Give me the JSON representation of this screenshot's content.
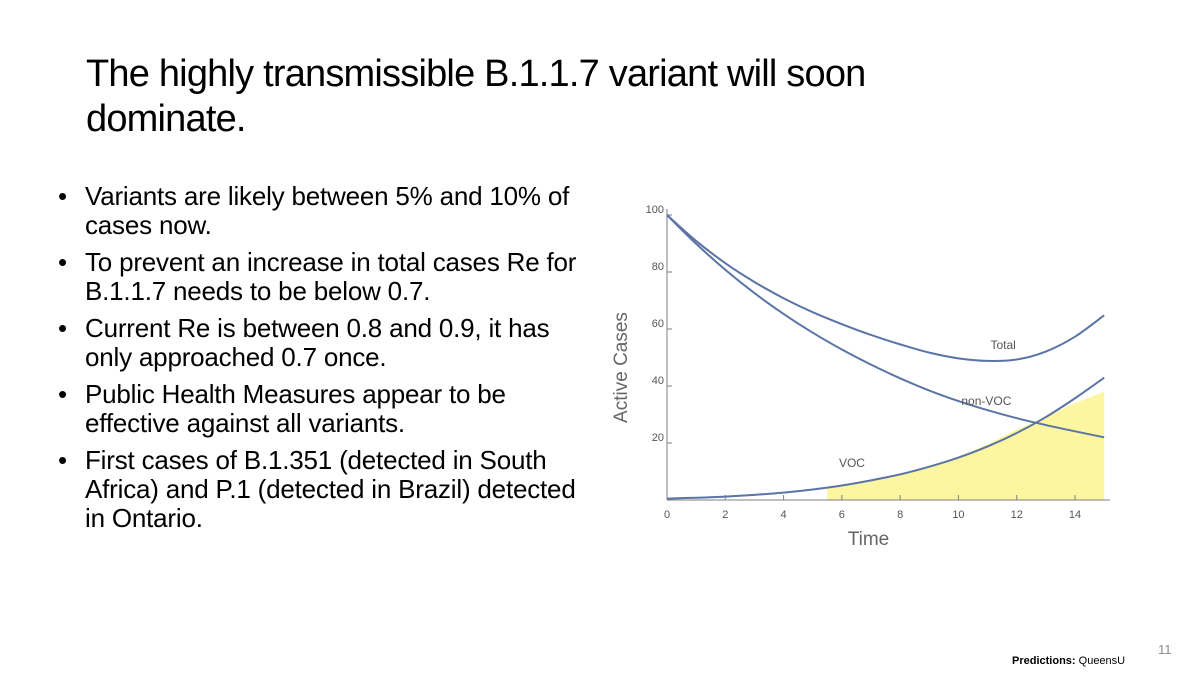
{
  "slide": {
    "title": "The highly transmissible B.1.1.7 variant will soon dominate.",
    "bullets": [
      "Variants are likely between 5% and 10% of cases now.",
      "To prevent an increase in total cases Re for B.1.1.7 needs to be below 0.7.",
      "Current Re is between 0.8 and 0.9, it has only approached 0.7 once.",
      "Public Health Measures appear to be effective against all variants.",
      "First cases of B.1.351 (detected in South Africa) and P.1 (detected in Brazil) detected in Ontario."
    ],
    "page_number": "11",
    "credit_label": "Predictions:",
    "credit_source": "QueensU"
  },
  "chart_data": {
    "type": "line",
    "xlabel": "Time",
    "ylabel": "Active Cases",
    "xlim": [
      0,
      15.2
    ],
    "ylim": [
      0,
      100
    ],
    "x_ticks": [
      0,
      2,
      4,
      6,
      8,
      10,
      12,
      14
    ],
    "y_ticks": [
      20,
      40,
      60,
      80,
      100
    ],
    "grid": false,
    "series": [
      {
        "name": "Total",
        "x": [
          0,
          1,
          2,
          3,
          4,
          5,
          6,
          7,
          8,
          9,
          10,
          11,
          12,
          13,
          14,
          15
        ],
        "y": [
          100,
          90.9,
          83.1,
          76.5,
          70.8,
          65.9,
          61.7,
          57.9,
          54.6,
          51.7,
          49.7,
          48.8,
          49.3,
          52.1,
          57.3,
          64.8
        ]
      },
      {
        "name": "non-VOC",
        "x": [
          0,
          1,
          2,
          3,
          4,
          5,
          6,
          7,
          8,
          9,
          10,
          11,
          12,
          13,
          14,
          15
        ],
        "y": [
          100,
          89.9,
          80.8,
          72.6,
          65.3,
          58.7,
          52.8,
          47.5,
          42.7,
          38.4,
          34.7,
          31.5,
          28.7,
          26.3,
          24.1,
          22.0
        ]
      },
      {
        "name": "VOC",
        "x": [
          0,
          1,
          2,
          3,
          4,
          5,
          6,
          7,
          8,
          9,
          10,
          11,
          12,
          13,
          14,
          15
        ],
        "y": [
          0.5,
          0.8,
          1.2,
          1.8,
          2.6,
          3.7,
          5.1,
          6.9,
          9.0,
          11.7,
          14.9,
          18.8,
          23.5,
          29.1,
          35.7,
          42.9
        ]
      }
    ],
    "shaded_region": {
      "color": "#fdf6a0",
      "x": [
        5.5,
        6,
        7,
        8,
        9,
        10,
        11,
        12,
        13,
        14,
        15
      ],
      "y": [
        4.2,
        5.0,
        6.9,
        9.0,
        11.7,
        15.2,
        19.5,
        24.8,
        29.0,
        34.0,
        38.0
      ]
    },
    "line_color": "#5b74a6",
    "axis_color": "#7f7f7f"
  }
}
